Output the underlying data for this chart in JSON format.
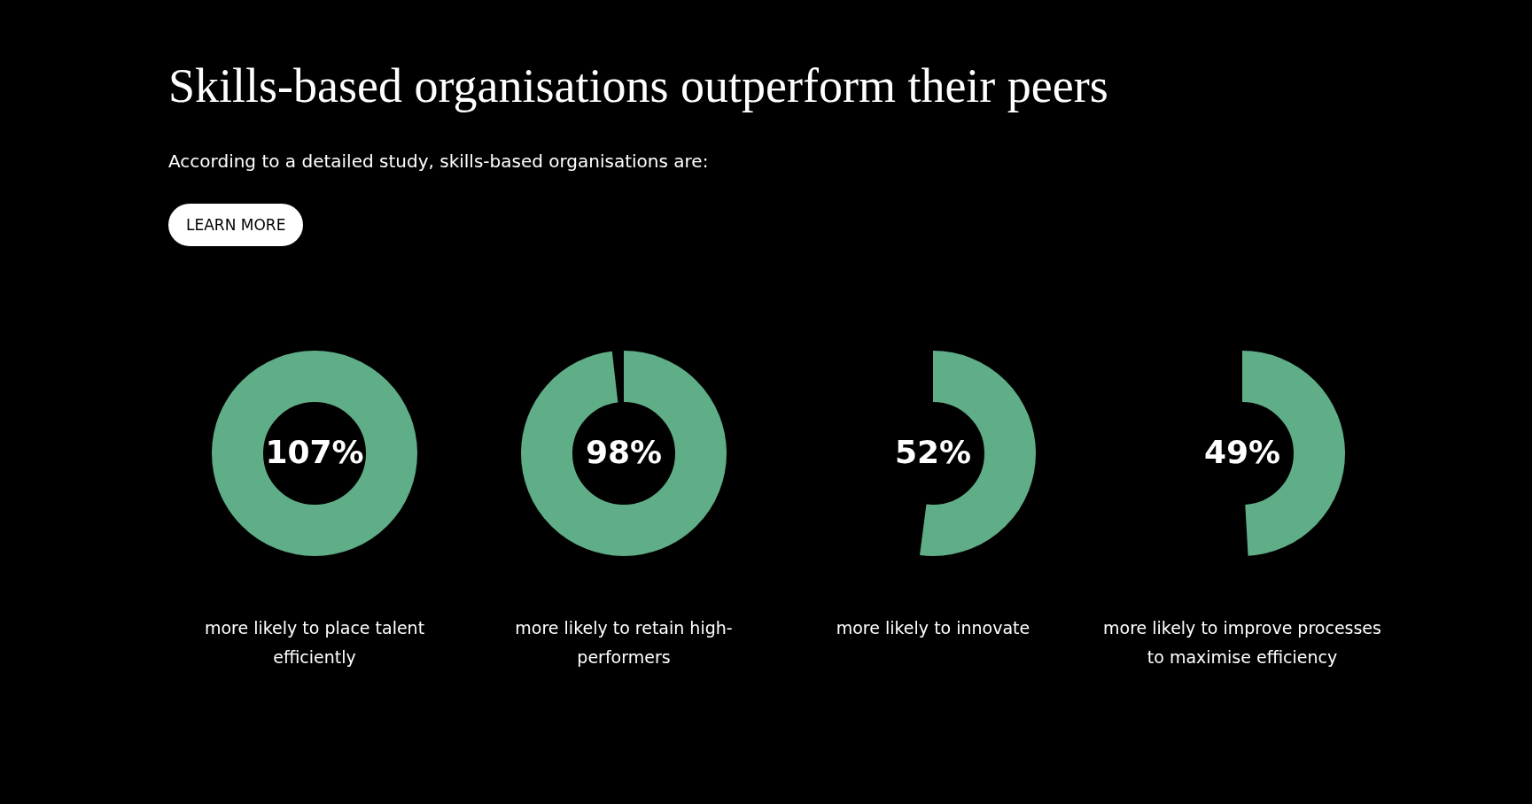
{
  "chart_data": [
    {
      "type": "other",
      "title": "Skills-based organisations outperform their peers",
      "subtitle": "According to a detailed study, skills-based organisations are:",
      "annotations": [
        "LEARN MORE"
      ],
      "categories": [
        "more likely to place talent efficiently"
      ],
      "values": [
        107
      ],
      "value_labels": [
        "107%"
      ],
      "color": "#5fae88"
    },
    {
      "type": "other",
      "categories": [
        "more likely to retain high-performers"
      ],
      "values": [
        98
      ],
      "value_labels": [
        "98%"
      ],
      "color": "#5fae88"
    },
    {
      "type": "other",
      "categories": [
        "more likely to innovate"
      ],
      "values": [
        52
      ],
      "value_labels": [
        "52%"
      ],
      "color": "#5fae88"
    },
    {
      "type": "other",
      "categories": [
        "more likely to improve processes to maximise efficiency"
      ],
      "values": [
        49
      ],
      "value_labels": [
        "49%"
      ],
      "color": "#5fae88"
    }
  ]
}
